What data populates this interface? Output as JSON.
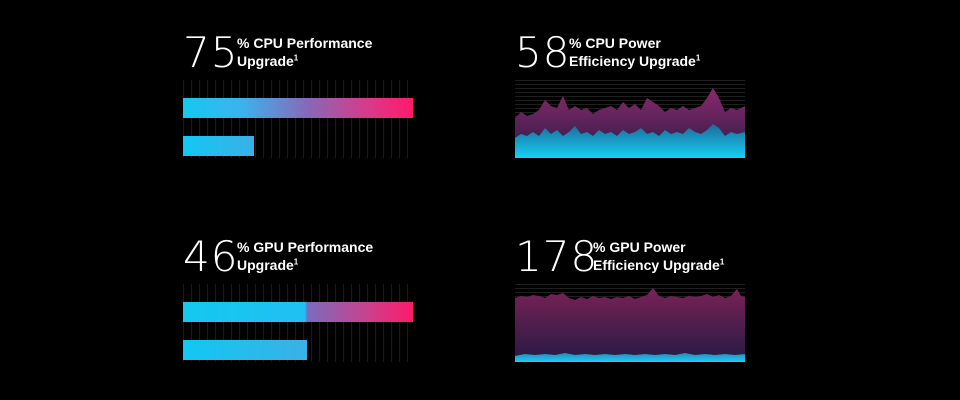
{
  "stats": [
    {
      "id": "cpu-performance",
      "value": "75",
      "label_line1": "% CPU Performance",
      "label_line2": "Upgrade",
      "footnote": "1",
      "new_level": 1.0,
      "old_level": 0.31
    },
    {
      "id": "cpu-power-efficiency",
      "value": "58",
      "label_line1": "% CPU Power",
      "label_line2": "Efficiency Upgrade",
      "footnote": "1"
    },
    {
      "id": "gpu-performance",
      "value": "46",
      "label_line1": "% GPU Performance",
      "label_line2": "Upgrade",
      "footnote": "1",
      "new_level": 1.0,
      "old_level": 0.54
    },
    {
      "id": "gpu-power-efficiency",
      "value": "178",
      "label_line1": "% GPU Power",
      "label_line2": "Efficiency Upgrade",
      "footnote": "1"
    }
  ],
  "colors": {
    "background": "#000000",
    "cyan": "#14c8f0",
    "magenta": "#ff1a6c",
    "purple_area": "#5a1e52",
    "text": "#ffffff"
  }
}
